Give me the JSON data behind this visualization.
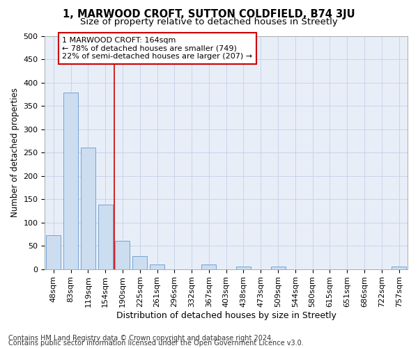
{
  "title": "1, MARWOOD CROFT, SUTTON COLDFIELD, B74 3JU",
  "subtitle": "Size of property relative to detached houses in Streetly",
  "xlabel": "Distribution of detached houses by size in Streetly",
  "ylabel": "Number of detached properties",
  "categories": [
    "48sqm",
    "83sqm",
    "119sqm",
    "154sqm",
    "190sqm",
    "225sqm",
    "261sqm",
    "296sqm",
    "332sqm",
    "367sqm",
    "403sqm",
    "438sqm",
    "473sqm",
    "509sqm",
    "544sqm",
    "580sqm",
    "615sqm",
    "651sqm",
    "686sqm",
    "722sqm",
    "757sqm"
  ],
  "values": [
    72,
    378,
    260,
    138,
    61,
    28,
    10,
    0,
    0,
    10,
    0,
    5,
    0,
    5,
    0,
    0,
    0,
    0,
    0,
    0,
    5
  ],
  "bar_color": "#ccddf0",
  "bar_edgecolor": "#6699cc",
  "property_line_x": 3.5,
  "annotation_line1": "1 MARWOOD CROFT: 164sqm",
  "annotation_line2": "← 78% of detached houses are smaller (749)",
  "annotation_line3": "22% of semi-detached houses are larger (207) →",
  "annotation_box_facecolor": "#ffffff",
  "annotation_box_edgecolor": "#cc0000",
  "vline_color": "#cc0000",
  "ylim": [
    0,
    500
  ],
  "yticks": [
    0,
    50,
    100,
    150,
    200,
    250,
    300,
    350,
    400,
    450,
    500
  ],
  "grid_color": "#c8d4e8",
  "bg_color": "#e8eef8",
  "footer1": "Contains HM Land Registry data © Crown copyright and database right 2024.",
  "footer2": "Contains public sector information licensed under the Open Government Licence v3.0.",
  "title_fontsize": 10.5,
  "subtitle_fontsize": 9.5,
  "axis_label_fontsize": 9,
  "tick_fontsize": 8,
  "ylabel_fontsize": 8.5,
  "footer_fontsize": 7
}
